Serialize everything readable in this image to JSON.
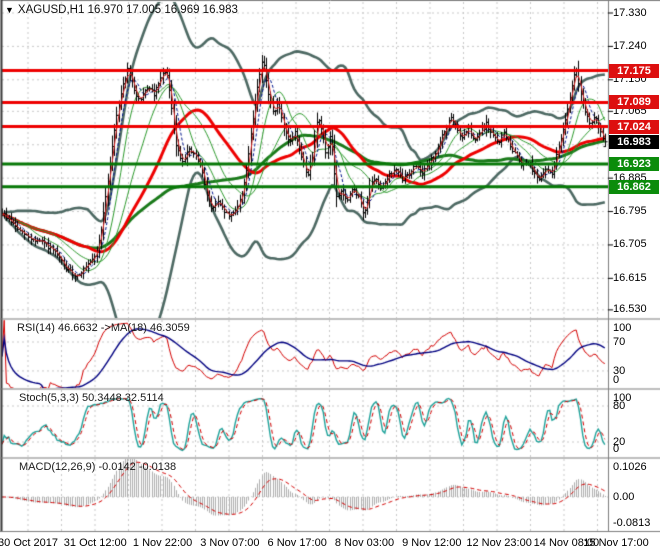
{
  "window": {
    "title": "XAGUSD,H1 16.970 17.005 16.969 16.983",
    "symbol": "XAGUSD",
    "timeframe": "H1",
    "quote": {
      "open": "16.970",
      "high": "17.005",
      "low": "16.969",
      "close": "16.983"
    }
  },
  "colors": {
    "background": "#ffffff",
    "grid": "#c9c9c9",
    "panel_border": "#7d7d7d",
    "bar": "#000000",
    "bollinger": "#4d6963",
    "ma_mid_red": "#ee0000",
    "ma_slow_green": "#1a7a1a",
    "ma_fast_green": "#2e9b2e",
    "ma_fast_blue": "#00148c",
    "ma_fast_red": "#dd2222",
    "resistance": "#ee0000",
    "support": "#067806",
    "badge_red": "#dd0f0f",
    "badge_green": "#0b8c0b",
    "badge_black": "#000000",
    "rsi_line": "#d40000",
    "rsi_ma": "#000080",
    "stoch_k": "#1fa39b",
    "stoch_d": "#d40000",
    "macd_hist": "#aeaeae",
    "macd_signal": "#d40000"
  },
  "chart_data": {
    "type": "ohlc-bars",
    "symbol": "XAGUSD",
    "timeframe": "H1",
    "current_quote": {
      "open": 16.97,
      "high": 17.005,
      "low": 16.969,
      "close": 16.983
    },
    "x_labels": [
      "30 Oct 2017",
      "31 Oct 12:00",
      "1 Nov 22:00",
      "3 Nov 07:00",
      "6 Nov 17:00",
      "8 Nov 03:00",
      "9 Nov 12:00",
      "12 Nov 23:00",
      "14 Nov 08:00",
      "15 Nov 17:00"
    ],
    "y_axis_ticks": [
      "17.330",
      "17.240",
      "17.150",
      "17.065",
      "16.885",
      "16.795",
      "16.705",
      "16.615",
      "16.530"
    ],
    "y_grid_levels": [
      17.33,
      17.24,
      17.15,
      17.065,
      16.975,
      16.885,
      16.795,
      16.705,
      16.615,
      16.53
    ],
    "resistance_levels": [
      "17.175",
      "17.089",
      "17.024"
    ],
    "support_levels": [
      "16.923",
      "16.862"
    ],
    "current_price": "16.983",
    "price_waypoints": [
      [
        2,
        16.79
      ],
      [
        10,
        16.77
      ],
      [
        20,
        16.74
      ],
      [
        32,
        16.72
      ],
      [
        44,
        16.71
      ],
      [
        56,
        16.68
      ],
      [
        66,
        16.64
      ],
      [
        76,
        16.62
      ],
      [
        84,
        16.64
      ],
      [
        92,
        16.66
      ],
      [
        98,
        16.7
      ],
      [
        104,
        16.8
      ],
      [
        110,
        16.93
      ],
      [
        116,
        17.05
      ],
      [
        122,
        17.13
      ],
      [
        128,
        17.18
      ],
      [
        134,
        17.12
      ],
      [
        140,
        17.09
      ],
      [
        147,
        17.13
      ],
      [
        154,
        17.11
      ],
      [
        160,
        17.15
      ],
      [
        166,
        17.18
      ],
      [
        171,
        17.08
      ],
      [
        176,
        16.97
      ],
      [
        182,
        16.93
      ],
      [
        188,
        16.96
      ],
      [
        194,
        16.95
      ],
      [
        200,
        16.92
      ],
      [
        206,
        16.85
      ],
      [
        211,
        16.8
      ],
      [
        217,
        16.82
      ],
      [
        223,
        16.8
      ],
      [
        229,
        16.78
      ],
      [
        235,
        16.8
      ],
      [
        241,
        16.83
      ],
      [
        247,
        16.92
      ],
      [
        253,
        17.05
      ],
      [
        258,
        17.15
      ],
      [
        263,
        17.21
      ],
      [
        268,
        17.11
      ],
      [
        273,
        17.06
      ],
      [
        278,
        17.09
      ],
      [
        283,
        17.02
      ],
      [
        289,
        16.98
      ],
      [
        295,
        17.01
      ],
      [
        301,
        16.94
      ],
      [
        307,
        16.89
      ],
      [
        312,
        16.94
      ],
      [
        317,
        17.05
      ],
      [
        321,
        17.02
      ],
      [
        326,
        16.95
      ],
      [
        331,
        17.01
      ],
      [
        336,
        16.83
      ],
      [
        341,
        16.85
      ],
      [
        347,
        16.82
      ],
      [
        353,
        16.86
      ],
      [
        359,
        16.83
      ],
      [
        364,
        16.78
      ],
      [
        369,
        16.86
      ],
      [
        375,
        16.88
      ],
      [
        381,
        16.86
      ],
      [
        388,
        16.89
      ],
      [
        395,
        16.91
      ],
      [
        402,
        16.88
      ],
      [
        409,
        16.9
      ],
      [
        416,
        16.92
      ],
      [
        423,
        16.9
      ],
      [
        430,
        16.93
      ],
      [
        437,
        16.96
      ],
      [
        444,
        17.01
      ],
      [
        450,
        17.05
      ],
      [
        456,
        17.02
      ],
      [
        462,
        16.99
      ],
      [
        468,
        17.02
      ],
      [
        474,
        16.98
      ],
      [
        480,
        17.01
      ],
      [
        486,
        17.03
      ],
      [
        492,
        17.0
      ],
      [
        498,
        16.98
      ],
      [
        504,
        17.01
      ],
      [
        510,
        16.97
      ],
      [
        516,
        16.95
      ],
      [
        522,
        16.92
      ],
      [
        528,
        16.93
      ],
      [
        534,
        16.9
      ],
      [
        540,
        16.88
      ],
      [
        546,
        16.91
      ],
      [
        552,
        16.9
      ],
      [
        558,
        16.96
      ],
      [
        563,
        17.02
      ],
      [
        568,
        17.08
      ],
      [
        572,
        17.14
      ],
      [
        576,
        17.18
      ],
      [
        580,
        17.12
      ],
      [
        585,
        17.06
      ],
      [
        590,
        17.03
      ],
      [
        596,
        17.05
      ],
      [
        601,
        17.0
      ],
      [
        607,
        16.983
      ]
    ],
    "indicators": {
      "bollinger": {
        "period": 40,
        "deviation": 2.0
      },
      "ma_mid_red": {
        "period": 40
      },
      "ma_slow_green": {
        "period": 90
      },
      "ma_fast_green": {
        "periods": [
          12,
          24
        ]
      },
      "ma_fast_blue": {
        "period": 6
      },
      "ma_fast_red": {
        "period": 3
      }
    },
    "subpanels": {
      "rsi": {
        "label": "RSI(14) 46.6632  ->MA(18) 46.3059",
        "period": 14,
        "ma_period": 18,
        "value": "46.6632",
        "ma_value": "46.3059",
        "scale": [
          100,
          70,
          30,
          0
        ],
        "levels": [
          70,
          30
        ]
      },
      "stoch": {
        "label": "Stoch(5,3,3) 50.3448 32.5114",
        "k": 5,
        "d": 3,
        "slowing": 3,
        "value": "50.3448",
        "signal_value": "32.5114",
        "scale": [
          100,
          80,
          20,
          0
        ],
        "levels": [
          80,
          20
        ]
      },
      "macd": {
        "label": "MACD(12,26,9) -0.0142 -0.0138",
        "fast": 12,
        "slow": 26,
        "signal": 9,
        "value": "-0.0142",
        "signal_value": "-0.0138",
        "scale": [
          "0.1026",
          "0.00",
          "-0.0813"
        ]
      }
    },
    "gen": {
      "bar_step": 2.2,
      "seed": 9,
      "close_noise": 0.006,
      "wick_noise": 0.014
    }
  }
}
